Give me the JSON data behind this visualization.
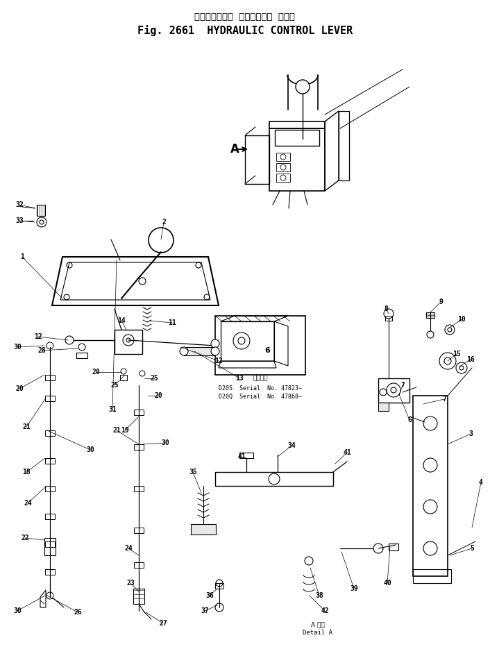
{
  "title_jp": "ハイドロリック  コントロール  レバー",
  "title_en": "Fig. 2661  HYDRAULIC CONTROL LEVER",
  "bg_color": "#ffffff",
  "line_color": "#000000",
  "serial_title": "適用号番",
  "serial_1": "D20S  Serial  No. 47823∼",
  "serial_2": "D20Q  Serial  No. 47868∼",
  "detail_jp": "A 詳細",
  "detail_en": "Detail A",
  "fig_w": 706,
  "fig_h": 958
}
